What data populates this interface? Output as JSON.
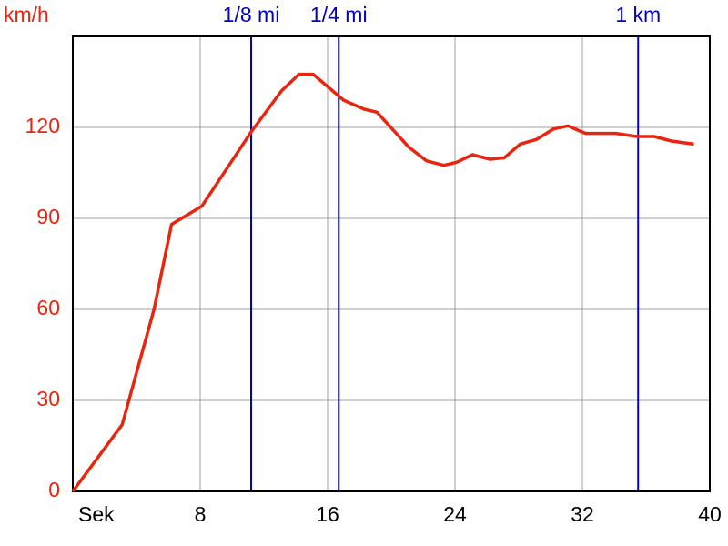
{
  "chart_data": {
    "type": "line",
    "y_label": "km/h",
    "x": [
      0,
      3.1,
      5.1,
      6.2,
      8.1,
      11.2,
      13.1,
      14.2,
      15.1,
      17,
      18.3,
      19.1,
      21.1,
      22.2,
      23.3,
      24.1,
      25.1,
      26.2,
      27.1,
      28.1,
      29.1,
      30.2,
      31.1,
      32.2,
      34.1,
      35.4,
      36.5,
      37.6,
      39
    ],
    "series": [
      {
        "name": "km/h",
        "color": "#e8260f",
        "values": [
          0,
          22,
          60,
          88,
          94,
          118.5,
          132,
          137.5,
          137.5,
          129,
          126,
          125,
          113.5,
          109,
          107.5,
          108.5,
          111,
          109.5,
          110,
          114.5,
          116,
          119.5,
          120.5,
          118,
          118,
          117,
          117,
          115.5,
          114.5
        ]
      }
    ],
    "markers": [
      {
        "label": "1/8 mi",
        "x": 11.2
      },
      {
        "label": "1/4 mi",
        "x": 16.7
      },
      {
        "label": "1 km",
        "x": 35.5
      }
    ],
    "marker_color": "#0000c8",
    "xlim": [
      0,
      40
    ],
    "xticks": [
      {
        "value": 0,
        "label": "Sek"
      },
      8,
      16,
      24,
      32,
      40
    ],
    "ylim": [
      0,
      150
    ],
    "yticks": [
      0,
      30,
      60,
      90,
      120
    ],
    "grid": true
  }
}
